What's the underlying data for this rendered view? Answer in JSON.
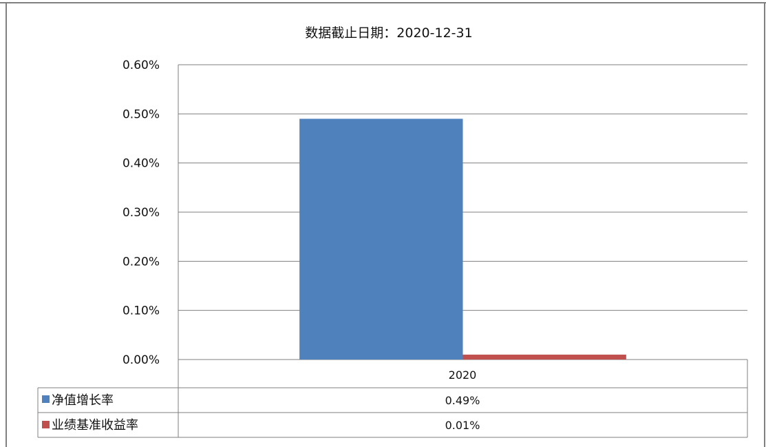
{
  "chart_data": {
    "type": "bar",
    "title": "数据截止日期：2020-12-31",
    "categories": [
      "2020"
    ],
    "series": [
      {
        "name": "净值增长率",
        "values": [
          0.49
        ],
        "color": "#4f81bd",
        "labels": [
          "0.49%"
        ]
      },
      {
        "name": "业绩基准收益率",
        "values": [
          0.01
        ],
        "color": "#c0504d",
        "labels": [
          "0.01%"
        ]
      }
    ],
    "yunit": "%",
    "ylim": [
      0,
      0.6
    ],
    "yticks": [
      "0.00%",
      "0.10%",
      "0.20%",
      "0.30%",
      "0.40%",
      "0.50%",
      "0.60%"
    ],
    "grid": true,
    "legend": "data-table"
  }
}
